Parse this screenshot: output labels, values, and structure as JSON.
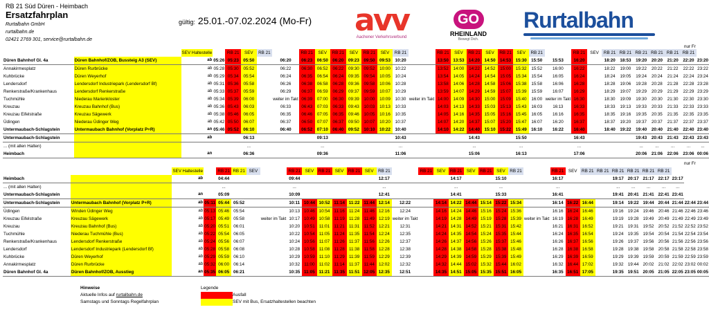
{
  "header": {
    "line": "RB 21 Süd Düren - Heimbach",
    "title": "Ersatzfahrplan",
    "company": "Rurtalbahn GmbH",
    "website": "rurtalbahn.de",
    "contact": "02421 2769 301, service@rurtalbahn.de",
    "validity_label": "gültig:",
    "validity_dates": "25.01.-07.02.2024 (Mo-Fr)"
  },
  "logos": {
    "avv_word": "avv",
    "avv_sub": "Aachener Verkehrsverbund",
    "go_word": "GO",
    "go_rheinland": "RHEINLAND",
    "go_sub": "Bewegt Dich.",
    "rurtalbahn_word": "Rurtalbahn"
  },
  "takt_text": "weiter im Takt",
  "nur_fr": "nur Fr",
  "table1": {
    "rows": [
      [
        "",
        "",
        "SEV Haltestelle",
        "",
        "RB 21",
        "SEV",
        "RB 21",
        "",
        "RB 21",
        "SEV",
        "RB 21",
        "SEV",
        "RB 21",
        "SEV",
        "RB 21",
        "",
        "RB 21",
        "SEV",
        "RB 21",
        "SEV",
        "RB 21",
        "SEV",
        "RB 21",
        "",
        "RB 21",
        "SEV",
        "RB 21",
        "RB 21",
        "RB 21",
        "RB 21",
        "RB 21",
        "RB 21"
      ],
      [
        "Düren Bahnhof Gl. 4a",
        "Düren Bahnhof/ZOB, Bussteig A3 (SEV)",
        "ab",
        "05:26",
        "05:23",
        "05:50",
        "",
        "06:20",
        "06:23",
        "06:50",
        "06:20",
        "09:23",
        "09:50",
        "09:53",
        "10:20",
        "",
        "13:50",
        "13:53",
        "14:20",
        "14:50",
        "14:53",
        "15:30",
        "15:50",
        "15:53",
        "16:20",
        "",
        "18:20",
        "18:53",
        "19:20",
        "20:20",
        "21:20",
        "22:20",
        "23:20"
      ],
      [
        "Annakirmesplatz",
        "Düren Rurbrücke",
        "ab",
        "05:28",
        "05:30",
        "05:52",
        "",
        "06:22",
        "06:30",
        "06:52",
        "06:22",
        "09:30",
        "09:52",
        "10:00",
        "10:22",
        "",
        "13:52",
        "14:00",
        "14:22",
        "14:52",
        "15:00",
        "15:32",
        "15:52",
        "16:00",
        "16:22",
        "",
        "18:22",
        "19:00",
        "19:22",
        "20:22",
        "21:22",
        "22:22",
        "23:22"
      ],
      [
        "Kuhbrücke",
        "Düren Weyerhof",
        "ab",
        "05:29",
        "05:34",
        "05:54",
        "",
        "06:24",
        "06:35",
        "06:54",
        "06:24",
        "09:35",
        "09:54",
        "10:05",
        "10:24",
        "",
        "13:54",
        "14:05",
        "14:24",
        "14:54",
        "15:05",
        "15:34",
        "15:54",
        "16:05",
        "16:24",
        "",
        "18:24",
        "19:05",
        "19:24",
        "20:24",
        "21:24",
        "22:24",
        "23:24"
      ],
      [
        "Lendersdorf",
        "Lendersdorf Industriepark (Lendersdorf Bf)",
        "ab",
        "05:31",
        "05:36",
        "05:58",
        "",
        "06:26",
        "06:38",
        "06:58",
        "06:28",
        "09:36",
        "09:58",
        "10:06",
        "10:28",
        "",
        "13:58",
        "14:06",
        "14:28",
        "14:58",
        "15:06",
        "15:38",
        "15:58",
        "16:06",
        "16:28",
        "",
        "18:28",
        "19:06",
        "19:28",
        "20:28",
        "21:28",
        "22:28",
        "23:28"
      ],
      [
        "Renkerstraße/Krankenhaus",
        "Lendersdorf Renkerstraße",
        "ab",
        "05:33",
        "05:37",
        "05:59",
        "",
        "06:29",
        "06:37",
        "06:59",
        "06:29",
        "09:37",
        "09:59",
        "10:07",
        "10:29",
        "",
        "13:59",
        "14:07",
        "14:29",
        "14:59",
        "15:07",
        "15:39",
        "15:59",
        "16:07",
        "16:29",
        "",
        "18:29",
        "19:07",
        "19:29",
        "20:29",
        "21:29",
        "22:29",
        "23:29"
      ],
      [
        "Tuchmühle",
        "Niederau Marienkloster",
        "ab",
        "05:34",
        "05:39",
        "06:00",
        "",
        "06:30",
        "06:39",
        "07:00",
        "06:30",
        "09:39",
        "10:00",
        "10:09",
        "10:30",
        "",
        "14:00",
        "14:09",
        "14:30",
        "15:00",
        "15:09",
        "15:40",
        "16:00",
        "16:09",
        "16:30",
        "",
        "18:30",
        "19:09",
        "19:30",
        "20:30",
        "21:30",
        "22:30",
        "23:30"
      ],
      [
        "Kreuzau",
        "Kreuzau Bahnhof (Bus)",
        "ab",
        "05:36",
        "05:43",
        "06:03",
        "",
        "06:33",
        "06:43",
        "07:03",
        "06:33",
        "09:43",
        "10:03",
        "10:13",
        "10:33",
        "",
        "14:03",
        "14:13",
        "14:33",
        "15:03",
        "15:13",
        "15:43",
        "16:03",
        "16:13",
        "16:33",
        "",
        "18:33",
        "19:13",
        "19:33",
        "20:33",
        "21:33",
        "22:33",
        "23:33"
      ],
      [
        "Kreuzau Eifelstraße",
        "Kreuzau Sägewerk",
        "ab",
        "05:38",
        "05:46",
        "06:05",
        "",
        "06:35",
        "06:46",
        "07:05",
        "06:35",
        "09:46",
        "10:05",
        "10:16",
        "10:35",
        "",
        "14:05",
        "14:16",
        "14:35",
        "15:05",
        "15:16",
        "15:45",
        "16:05",
        "16:16",
        "16:35",
        "",
        "18:35",
        "19:16",
        "19:35",
        "20:35",
        "21:35",
        "22:35",
        "23:35"
      ],
      [
        "Üdingen",
        "Niederau Üdinger Weg",
        "ab",
        "05:42",
        "05:50",
        "06:07",
        "",
        "06:37",
        "06:50",
        "07:07",
        "06:37",
        "09:50",
        "10:07",
        "10:20",
        "10:37",
        "",
        "14:07",
        "14:20",
        "14:37",
        "15:07",
        "15:20",
        "15:47",
        "16:07",
        "16:20",
        "16:37",
        "",
        "18:37",
        "19:20",
        "19:37",
        "20:37",
        "21:37",
        "22:37",
        "23:37"
      ],
      [
        "Untermaubach-Schlagstein",
        "Untermaubach Bahnhof (Vorplatz P+R)",
        "an",
        "05:46",
        "05:52",
        "06:10",
        "",
        "06:40",
        "06:52",
        "07:10",
        "06:40",
        "09:52",
        "10:10",
        "10:22",
        "10:40",
        "",
        "14:10",
        "14:22",
        "14:40",
        "15:10",
        "15:22",
        "15:49",
        "16:10",
        "16:22",
        "16:40",
        "",
        "18:40",
        "19:22",
        "19:40",
        "20:40",
        "21:40",
        "22:40",
        "23:40"
      ],
      [
        "Untermaubach-Schlagstein",
        "",
        "ab",
        "",
        "",
        "06:13",
        "",
        "",
        "",
        "09:13",
        "",
        "",
        "",
        "",
        "10:43",
        "",
        "",
        "",
        "14:43",
        "",
        "",
        "15:50",
        "",
        "",
        "16:43",
        "",
        "",
        "",
        "19:43",
        "20:43",
        "21:43",
        "22:43",
        "23:43"
      ],
      [
        "... (mit allen Halten)",
        "",
        "",
        "",
        "",
        "...",
        "",
        "",
        "",
        "...",
        "",
        "",
        "",
        "",
        "...",
        "",
        "",
        "",
        "...",
        "",
        "",
        "...",
        "",
        "",
        "...",
        "",
        "",
        "",
        "...",
        "...",
        "...",
        "...",
        "..."
      ],
      [
        "Heimbach",
        "",
        "an",
        "",
        "",
        "06:36",
        "",
        "",
        "",
        "09:36",
        "",
        "",
        "",
        "",
        "11:06",
        "",
        "",
        "",
        "15:06",
        "",
        "",
        "16:13",
        "",
        "",
        "17:06",
        "",
        "",
        "",
        "20:06",
        "21:06",
        "22:06",
        "23:06",
        "00:06"
      ]
    ]
  },
  "table2": {
    "rows": [
      [
        "",
        "",
        "SEV Haltestelle",
        "",
        "RB 21",
        "RB 21",
        "SEV",
        "",
        "RB 21",
        "SEV",
        "RB 21",
        "SEV",
        "RB 21",
        "SEV",
        "RB 21",
        "",
        "RB 21",
        "SEV",
        "RB 21",
        "SEV",
        "RB 21",
        "SEV",
        "RB 21",
        "",
        "RB 21",
        "SEV",
        "RB 21",
        "RB 21",
        "RB 21",
        "RB 21",
        "RB 21",
        "RB 21"
      ],
      [
        "Heimbach",
        "",
        "ab",
        "",
        "04:44",
        "",
        "",
        "",
        "09:44",
        "",
        "",
        "",
        "",
        "",
        "12:17",
        "",
        "",
        "",
        "14:17",
        "",
        "",
        "15:10",
        "",
        "",
        "16:17",
        "",
        "",
        "",
        "19:17",
        "20:17",
        "21:17",
        "22:17",
        "23:17"
      ],
      [
        "... (mit allen Halten)",
        "",
        "",
        "",
        "...",
        "",
        "",
        "",
        "...",
        "",
        "",
        "",
        "",
        "",
        "...",
        "",
        "",
        "",
        "...",
        "",
        "",
        "...",
        "",
        "",
        "...",
        "",
        "",
        "",
        "...",
        "...",
        "...",
        "...",
        "..."
      ],
      [
        "Untermaubach-Schlagstein",
        "",
        "an",
        "",
        "05:09",
        "",
        "",
        "",
        "10:09",
        "",
        "",
        "",
        "",
        "",
        "12:41",
        "",
        "",
        "",
        "14:41",
        "",
        "",
        "15:33",
        "",
        "",
        "16:41",
        "",
        "",
        "",
        "19:41",
        "20:41",
        "21:41",
        "22:41",
        "23:41"
      ],
      [
        "Untermaubach-Schlagstein",
        "Untermaubach Bahnhof (Vorplatz P+R)",
        "ab",
        "05:11",
        "05:44",
        "05:52",
        "",
        "",
        "10:11",
        "10:44",
        "10:52",
        "11:14",
        "11:22",
        "11:44",
        "12:14",
        "12:22",
        "",
        "14:14",
        "14:22",
        "14:44",
        "15:14",
        "15:22",
        "15:34",
        "",
        "16:14",
        "16:22",
        "16:44",
        "",
        "19:14",
        "19:22",
        "19:44",
        "20:44",
        "21:44",
        "22:44",
        "23:44"
      ],
      [
        "Üdingen",
        "Winden Üdinger Weg",
        "ab",
        "05:13",
        "05:46",
        "05:54",
        "",
        "",
        "10:13",
        "10:46",
        "10:54",
        "11:16",
        "11:24",
        "11:46",
        "12:16",
        "12:24",
        "",
        "14:16",
        "14:24",
        "14:46",
        "15:16",
        "15:24",
        "15:36",
        "",
        "16:16",
        "16:24",
        "16:46",
        "",
        "19:16",
        "19:24",
        "19:46",
        "20:46",
        "21:46",
        "22:46",
        "23:46"
      ],
      [
        "Kreuzau Eifelstraße",
        "Kreuzau Sägewerk",
        "ab",
        "05:17",
        "05:49",
        "05:58",
        "",
        "",
        "10:17",
        "10:49",
        "10:58",
        "11:19",
        "11:28",
        "11:49",
        "12:19",
        "12:28",
        "",
        "14:19",
        "14:28",
        "14:49",
        "15:19",
        "15:28",
        "15:39",
        "",
        "16:19",
        "16:28",
        "16:49",
        "",
        "19:19",
        "19:28",
        "19:49",
        "20:49",
        "21:49",
        "22:49",
        "23:49"
      ],
      [
        "Kreuzau",
        "Kreuzau Bahnhof (Bus)",
        "ab",
        "05:20",
        "05:51",
        "06:01",
        "",
        "",
        "10:20",
        "10:51",
        "11:01",
        "11:21",
        "11:31",
        "11:52",
        "12:21",
        "12:31",
        "",
        "14:21",
        "14:31",
        "14:52",
        "15:21",
        "15:31",
        "15:42",
        "",
        "16:21",
        "16:31",
        "16:52",
        "",
        "19:21",
        "19:31",
        "19:52",
        "20:52",
        "21:52",
        "22:52",
        "23:52"
      ],
      [
        "Tuchmühle",
        "Niederau Tuchmühle (Bus)",
        "ab",
        "05:22",
        "05:54",
        "06:05",
        "",
        "",
        "10:22",
        "10:54",
        "11:05",
        "11:24",
        "11:35",
        "11:54",
        "12:24",
        "12:35",
        "",
        "14:24",
        "14:35",
        "14:54",
        "15:24",
        "15:35",
        "15:44",
        "",
        "16:24",
        "16:35",
        "16:54",
        "",
        "19:24",
        "19:35",
        "19:54",
        "20:54",
        "21:54",
        "22:54",
        "23:54"
      ],
      [
        "Renkerstraße/Krankenhaus",
        "Lendersdorf Renkerstraße",
        "ab",
        "05:24",
        "05:56",
        "06:07",
        "",
        "",
        "10:24",
        "10:56",
        "11:07",
        "11:26",
        "11:37",
        "11:56",
        "12:26",
        "12:37",
        "",
        "14:26",
        "14:37",
        "14:56",
        "15:26",
        "15:37",
        "15:46",
        "",
        "16:26",
        "16:37",
        "16:56",
        "",
        "19:26",
        "19:37",
        "19:56",
        "20:56",
        "21:56",
        "22:56",
        "23:56"
      ],
      [
        "Lendersdorf",
        "Lendersdorf Industriepark (Lendersdorf Bf)",
        "ab",
        "05:28",
        "05:58",
        "06:08",
        "",
        "",
        "10:28",
        "10:58",
        "11:08",
        "11:28",
        "11:38",
        "11:58",
        "12:28",
        "12:38",
        "",
        "14:28",
        "14:38",
        "14:58",
        "15:28",
        "15:38",
        "15:48",
        "",
        "16:28",
        "16:38",
        "16:58",
        "",
        "19:28",
        "19:38",
        "19:58",
        "20:58",
        "21:58",
        "22:58",
        "23:58"
      ],
      [
        "Kuhbrücke",
        "Düren Weyerhof",
        "ab",
        "05:29",
        "05:59",
        "06:10",
        "",
        "",
        "10:29",
        "10:59",
        "11:10",
        "11:29",
        "11:39",
        "11:59",
        "12:29",
        "12:39",
        "",
        "14:29",
        "14:39",
        "14:59",
        "15:29",
        "15:39",
        "15:49",
        "",
        "16:29",
        "16:39",
        "16:59",
        "",
        "19:29",
        "19:39",
        "19:59",
        "20:59",
        "21:59",
        "22:59",
        "23:59"
      ],
      [
        "Annakirmesplatz",
        "Düren Rurbrücke",
        "ab",
        "05:32",
        "06:00",
        "06:14",
        "",
        "",
        "10:32",
        "11:00",
        "11:02",
        "11:14",
        "11:37",
        "11:44",
        "12:02",
        "12:32",
        "",
        "14:32",
        "14:44",
        "15:02",
        "15:32",
        "15:44",
        "16:02",
        "",
        "16:32",
        "16:44",
        "17:02",
        "",
        "19:32",
        "19:44",
        "20:02",
        "21:02",
        "22:02",
        "23:02",
        "00:02"
      ],
      [
        "Düren Bahnhof Gl. 4a",
        "Düren Bahnhof/ZOB, Ausstieg",
        "an",
        "05:35",
        "06:05",
        "06:21",
        "",
        "",
        "10:35",
        "11:05",
        "11:21",
        "11:35",
        "11:51",
        "12:05",
        "12:35",
        "12:51",
        "",
        "14:35",
        "14:51",
        "15:05",
        "15:35",
        "15:51",
        "16:05",
        "",
        "16:35",
        "16:51",
        "17:05",
        "",
        "19:35",
        "19:51",
        "20:05",
        "21:05",
        "22:05",
        "23:05",
        "00:05"
      ]
    ]
  },
  "legend": {
    "hints_title": "Hinweise",
    "hint1_prefix": "Aktuelle Infos auf ",
    "hint1_link": "rurtalbahn.de",
    "hint2": "Samstags und Sonntags Regelfahrplan",
    "legend_title": "Legende",
    "red_label": "Ausfall",
    "yellow_label": "SEV mit Bus, Ersatzhaltestellen beachten"
  }
}
